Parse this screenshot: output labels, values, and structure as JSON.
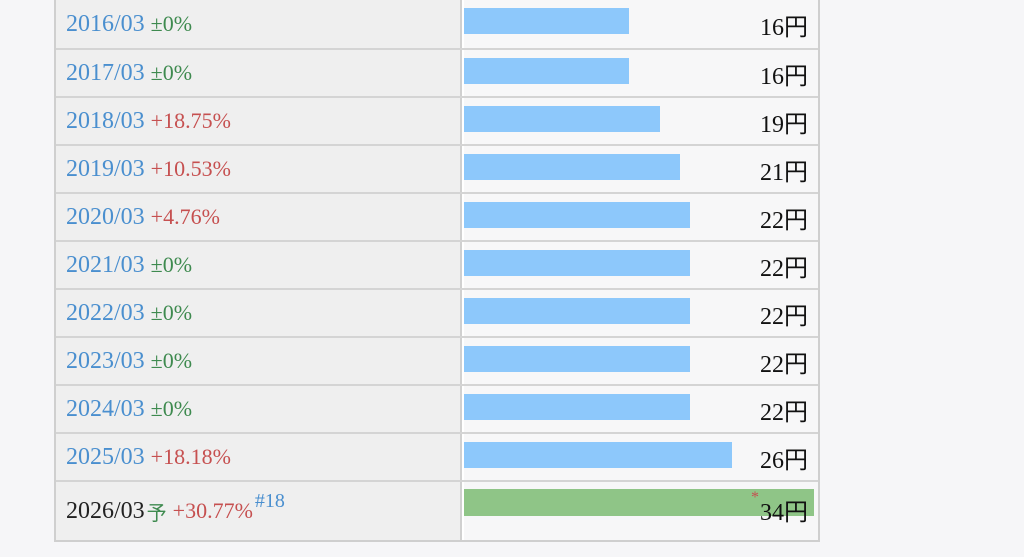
{
  "dividend_history": {
    "unit": "円",
    "max_value": 34,
    "rows": [
      {
        "period": "2016/03",
        "change": "±0%",
        "change_type": "zero",
        "value": 16,
        "amount": "16円"
      },
      {
        "period": "2017/03",
        "change": "±0%",
        "change_type": "zero",
        "value": 16,
        "amount": "16円"
      },
      {
        "period": "2018/03",
        "change": "+18.75%",
        "change_type": "up",
        "value": 19,
        "amount": "19円"
      },
      {
        "period": "2019/03",
        "change": "+10.53%",
        "change_type": "up",
        "value": 21,
        "amount": "21円"
      },
      {
        "period": "2020/03",
        "change": "+4.76%",
        "change_type": "up",
        "value": 22,
        "amount": "22円"
      },
      {
        "period": "2021/03",
        "change": "±0%",
        "change_type": "zero",
        "value": 22,
        "amount": "22円"
      },
      {
        "period": "2022/03",
        "change": "±0%",
        "change_type": "zero",
        "value": 22,
        "amount": "22円"
      },
      {
        "period": "2023/03",
        "change": "±0%",
        "change_type": "zero",
        "value": 22,
        "amount": "22円"
      },
      {
        "period": "2024/03",
        "change": "±0%",
        "change_type": "zero",
        "value": 22,
        "amount": "22円"
      },
      {
        "period": "2025/03",
        "change": "+18.18%",
        "change_type": "up",
        "value": 26,
        "amount": "26円"
      }
    ],
    "forecast": {
      "period": "2026/03",
      "forecast_mark": "予",
      "change": "+30.77%",
      "change_type": "up",
      "reference": "#18",
      "asterisk": "*",
      "value": 34,
      "amount": "34円"
    }
  },
  "colors": {
    "bar_actual": "#8dc8fb",
    "bar_forecast": "#8fc587",
    "year_link": "#4a8fcf",
    "change_zero": "#3e8a4f",
    "change_up": "#c65050"
  }
}
